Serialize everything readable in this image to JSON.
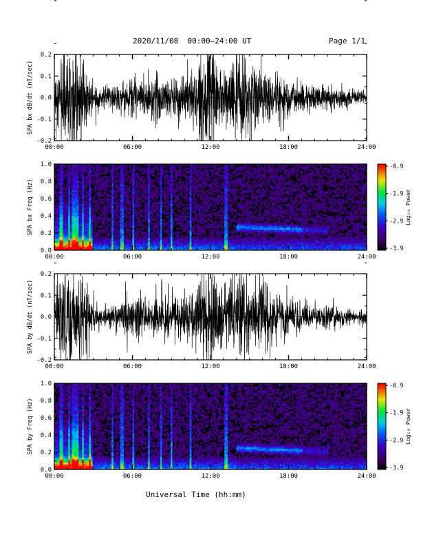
{
  "header": {
    "title": "2020/11/08  00:00–24:00 UT",
    "page": "Page 1/1"
  },
  "xlabel": "Universal Time (hh:mm)",
  "colorbar_label": "Log₁₀ Power",
  "chart_data": [
    {
      "type": "line",
      "title": "",
      "ylabel": "SPA bx dB/dt (nT/sec)",
      "xlim": [
        0,
        24
      ],
      "ylim": [
        -0.2,
        0.2
      ],
      "xticks": [
        "00:00",
        "06:00",
        "12:00",
        "18:00",
        "24:00"
      ],
      "yticks": [
        "-0.2",
        "-0.1",
        "0.0",
        "0.1",
        "0.2"
      ],
      "amplitude_envelope": {
        "hours": [
          0,
          0.5,
          1,
          1.5,
          2,
          2.5,
          3,
          4,
          5,
          6,
          7,
          8,
          9,
          10,
          11,
          12,
          13,
          14,
          14.5,
          15,
          16,
          17,
          18,
          19,
          20,
          21,
          22,
          23,
          24
        ],
        "amplitude": [
          0.08,
          0.2,
          0.2,
          0.2,
          0.2,
          0.12,
          0.06,
          0.04,
          0.06,
          0.09,
          0.08,
          0.11,
          0.08,
          0.09,
          0.14,
          0.2,
          0.12,
          0.16,
          0.2,
          0.16,
          0.14,
          0.1,
          0.08,
          0.06,
          0.05,
          0.05,
          0.04,
          0.03,
          0.03
        ]
      }
    },
    {
      "type": "heatmap",
      "title": "",
      "ylabel": "SPA bx Freq (Hz)",
      "xlim": [
        0,
        24
      ],
      "ylim": [
        0.0,
        1.0
      ],
      "xticks": [
        "00:00",
        "06:00",
        "12:00",
        "18:00",
        "24:00"
      ],
      "yticks": [
        "0.0",
        "0.2",
        "0.4",
        "0.6",
        "0.8",
        "1.0"
      ],
      "colorbar": {
        "label": "Log₁₀ Power",
        "range": [
          -3.9,
          -0.9
        ],
        "ticks": [
          "-0.9",
          "-1.9",
          "-2.9",
          "-3.9"
        ]
      },
      "features": {
        "pc_band_center_hz": 0.27,
        "pc_band_hours": [
          14,
          21
        ],
        "low_freq_intensity_hours": [
          0,
          3
        ]
      }
    },
    {
      "type": "line",
      "title": "",
      "ylabel": "SPA by dB/dt (nT/sec)",
      "xlim": [
        0,
        24
      ],
      "ylim": [
        -0.2,
        0.2
      ],
      "xticks": [
        "00:00",
        "06:00",
        "12:00",
        "18:00",
        "24:00"
      ],
      "yticks": [
        "-0.2",
        "-0.1",
        "0.0",
        "0.1",
        "0.2"
      ],
      "amplitude_envelope": {
        "hours": [
          0,
          0.5,
          1,
          1.5,
          2,
          2.5,
          3,
          4,
          5,
          6,
          7,
          8,
          9,
          10,
          11,
          12,
          13,
          14,
          14.5,
          15,
          16,
          17,
          18,
          19,
          20,
          21,
          22,
          23,
          24
        ],
        "amplitude": [
          0.08,
          0.2,
          0.2,
          0.2,
          0.2,
          0.14,
          0.06,
          0.04,
          0.06,
          0.1,
          0.08,
          0.1,
          0.08,
          0.09,
          0.12,
          0.2,
          0.12,
          0.14,
          0.2,
          0.15,
          0.14,
          0.1,
          0.08,
          0.06,
          0.05,
          0.05,
          0.04,
          0.03,
          0.03
        ]
      }
    },
    {
      "type": "heatmap",
      "title": "",
      "ylabel": "SPA by Freq (Hz)",
      "xlim": [
        0,
        24
      ],
      "ylim": [
        0.0,
        1.0
      ],
      "xticks": [
        "00:00",
        "06:00",
        "12:00",
        "18:00",
        "24:00"
      ],
      "yticks": [
        "0.0",
        "0.2",
        "0.4",
        "0.6",
        "0.8",
        "1.0"
      ],
      "colorbar": {
        "label": "Log₁₀ Power",
        "range": [
          -3.9,
          -0.9
        ],
        "ticks": [
          "-0.9",
          "-1.9",
          "-2.9",
          "-3.9"
        ]
      },
      "features": {
        "pc_band_center_hz": 0.25,
        "pc_band_hours": [
          14,
          21
        ],
        "low_freq_intensity_hours": [
          0,
          3
        ]
      }
    }
  ]
}
